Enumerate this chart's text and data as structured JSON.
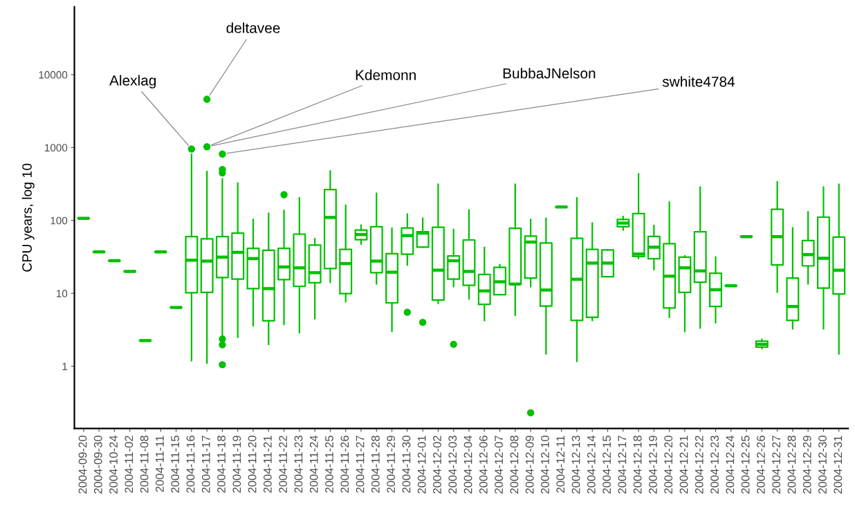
{
  "chart_data": {
    "type": "box",
    "ylabel": "CPU years, log 10",
    "log": true,
    "grid": false,
    "color": "#00c000",
    "ylim": [
      0.14,
      85000
    ],
    "yticks": [
      1,
      10,
      100,
      1000,
      10000
    ],
    "categories": [
      "2004-09-20",
      "2004-09-30",
      "2004-10-24",
      "2004-11-02",
      "2004-11-08",
      "2004-11-11",
      "2004-11-15",
      "2004-11-16",
      "2004-11-17",
      "2004-11-18",
      "2004-11-19",
      "2004-11-20",
      "2004-11-21",
      "2004-11-22",
      "2004-11-23",
      "2004-11-24",
      "2004-11-25",
      "2004-11-26",
      "2004-11-27",
      "2004-11-28",
      "2004-11-29",
      "2004-11-30",
      "2004-12-01",
      "2004-12-02",
      "2004-12-03",
      "2004-12-04",
      "2004-12-06",
      "2004-12-07",
      "2004-12-08",
      "2004-12-09",
      "2004-12-10",
      "2004-12-11",
      "2004-12-13",
      "2004-12-14",
      "2004-12-15",
      "2004-12-17",
      "2004-12-18",
      "2004-12-19",
      "2004-12-20",
      "2004-12-21",
      "2004-12-22",
      "2004-12-23",
      "2004-12-24",
      "2004-12-25",
      "2004-12-26",
      "2004-12-27",
      "2004-12-28",
      "2004-12-29",
      "2004-12-30",
      "2004-12-31"
    ],
    "boxes": [
      {
        "low": 107,
        "q1": 107,
        "median": 107,
        "q3": 107,
        "high": 107
      },
      {
        "low": 37,
        "q1": 37,
        "median": 37,
        "q3": 37,
        "high": 37
      },
      {
        "low": 28,
        "q1": 28,
        "median": 28,
        "q3": 28,
        "high": 28
      },
      {
        "low": 20,
        "q1": 20,
        "median": 20,
        "q3": 20,
        "high": 20
      },
      {
        "low": 2.25,
        "q1": 2.25,
        "median": 2.25,
        "q3": 2.25,
        "high": 2.25
      },
      {
        "low": 37,
        "q1": 37,
        "median": 37,
        "q3": 37,
        "high": 37
      },
      {
        "low": 6.4,
        "q1": 6.4,
        "median": 6.4,
        "q3": 6.4,
        "high": 6.4
      },
      {
        "low": 1.2,
        "q1": 10.2,
        "median": 28.5,
        "q3": 60,
        "high": 805,
        "outliers": [
          955
        ]
      },
      {
        "low": 1.11,
        "q1": 10.3,
        "median": 27.7,
        "q3": 56,
        "high": 467,
        "outliers": [
          4590,
          1025
        ]
      },
      {
        "low": 2.6,
        "q1": 16.5,
        "median": 31.4,
        "q3": 60,
        "high": 370,
        "outliers": [
          815,
          500,
          449,
          2.36,
          1.97,
          1.05
        ]
      },
      {
        "low": 2.5,
        "q1": 15.7,
        "median": 36.5,
        "q3": 67,
        "high": 325
      },
      {
        "low": 3.6,
        "q1": 11.6,
        "median": 30,
        "q3": 41.5,
        "high": 103
      },
      {
        "low": 2.0,
        "q1": 4.2,
        "median": 11.6,
        "q3": 39,
        "high": 125
      },
      {
        "low": 3.75,
        "q1": 15.4,
        "median": 23,
        "q3": 41.5,
        "high": 137,
        "outliers": [
          226
        ]
      },
      {
        "low": 2.9,
        "q1": 12.5,
        "median": 22.4,
        "q3": 65,
        "high": 204
      },
      {
        "low": 4.5,
        "q1": 14,
        "median": 19.2,
        "q3": 46,
        "high": 56
      },
      {
        "low": 14.2,
        "q1": 21.9,
        "median": 110,
        "q3": 265,
        "high": 476
      },
      {
        "low": 7.7,
        "q1": 9.9,
        "median": 25.6,
        "q3": 40,
        "high": 161
      },
      {
        "low": 47.5,
        "q1": 54.5,
        "median": 64,
        "q3": 74,
        "high": 86
      },
      {
        "low": 13.5,
        "q1": 19.2,
        "median": 27.7,
        "q3": 82,
        "high": 235
      },
      {
        "low": 3.03,
        "q1": 7.4,
        "median": 19.5,
        "q3": 35,
        "high": 78
      },
      {
        "low": 24.5,
        "q1": 34.4,
        "median": 62,
        "q3": 79,
        "high": 122,
        "outliers": [
          5.5
        ]
      },
      {
        "low": 43,
        "q1": 43,
        "median": 67,
        "q3": 70,
        "high": 107,
        "outliers": [
          4.0
        ]
      },
      {
        "low": 7.3,
        "q1": 8.1,
        "median": 20.8,
        "q3": 80.5,
        "high": 313
      },
      {
        "low": 12.4,
        "q1": 15.7,
        "median": 28,
        "q3": 32.6,
        "high": 75,
        "outliers": [
          2.0
        ]
      },
      {
        "low": 8.4,
        "q1": 12.9,
        "median": 20,
        "q3": 54,
        "high": 139
      },
      {
        "low": 4.25,
        "q1": 7.05,
        "median": 10.8,
        "q3": 18.2,
        "high": 42.5
      },
      {
        "low": 9.6,
        "q1": 9.6,
        "median": 14.4,
        "q3": 22.7,
        "high": 24.7
      },
      {
        "low": 5.0,
        "q1": 13.4,
        "median": 13.4,
        "q3": 78,
        "high": 313
      },
      {
        "low": 12.4,
        "q1": 16.2,
        "median": 50.5,
        "q3": 61,
        "high": 103,
        "outliers": [
          0.23
        ]
      },
      {
        "low": 1.48,
        "q1": 6.7,
        "median": 11.1,
        "q3": 49,
        "high": 107
      },
      {
        "low": 153,
        "q1": 153,
        "median": 153,
        "q3": 153,
        "high": 153
      },
      {
        "low": 1.17,
        "q1": 4.25,
        "median": 15.6,
        "q3": 57,
        "high": 204
      },
      {
        "low": 4.25,
        "q1": 4.7,
        "median": 26,
        "q3": 40,
        "high": 92
      },
      {
        "low": 16.9,
        "q1": 16.9,
        "median": 26,
        "q3": 39.4,
        "high": 39.4
      },
      {
        "low": 74,
        "q1": 82,
        "median": 92,
        "q3": 103,
        "high": 113
      },
      {
        "low": 30,
        "q1": 32,
        "median": 34.6,
        "q3": 124,
        "high": 433
      },
      {
        "low": 21.2,
        "q1": 29.8,
        "median": 43,
        "q3": 60.5,
        "high": 85
      },
      {
        "low": 4.7,
        "q1": 6.3,
        "median": 17.2,
        "q3": 48,
        "high": 178
      },
      {
        "low": 3.0,
        "q1": 10.3,
        "median": 22.4,
        "q3": 31.4,
        "high": 32.6
      },
      {
        "low": 3.35,
        "q1": 14.2,
        "median": 20.3,
        "q3": 70,
        "high": 286
      },
      {
        "low": 3.95,
        "q1": 6.6,
        "median": 11.2,
        "q3": 18.9,
        "high": 31.4
      },
      {
        "low": 12.7,
        "q1": 12.7,
        "median": 12.7,
        "q3": 12.7,
        "high": 12.7
      },
      {
        "low": 60,
        "q1": 60,
        "median": 60,
        "q3": 60,
        "high": 60
      },
      {
        "low": 1.75,
        "q1": 1.83,
        "median": 2.0,
        "q3": 2.21,
        "high": 2.33
      },
      {
        "low": 10.4,
        "q1": 24.5,
        "median": 60,
        "q3": 142,
        "high": 337
      },
      {
        "low": 3.27,
        "q1": 4.25,
        "median": 6.6,
        "q3": 16.2,
        "high": 79
      },
      {
        "low": 13.5,
        "q1": 23.8,
        "median": 33.9,
        "q3": 53,
        "high": 131
      },
      {
        "low": 3.27,
        "q1": 11.8,
        "median": 30.3,
        "q3": 111,
        "high": 286
      },
      {
        "low": 1.48,
        "q1": 9.8,
        "median": 20.8,
        "q3": 59,
        "high": 313
      }
    ],
    "annotations": [
      "Alexlag",
      "deltavee",
      "Kdemonn",
      "BubbaJNelson",
      "swhite4784"
    ]
  }
}
